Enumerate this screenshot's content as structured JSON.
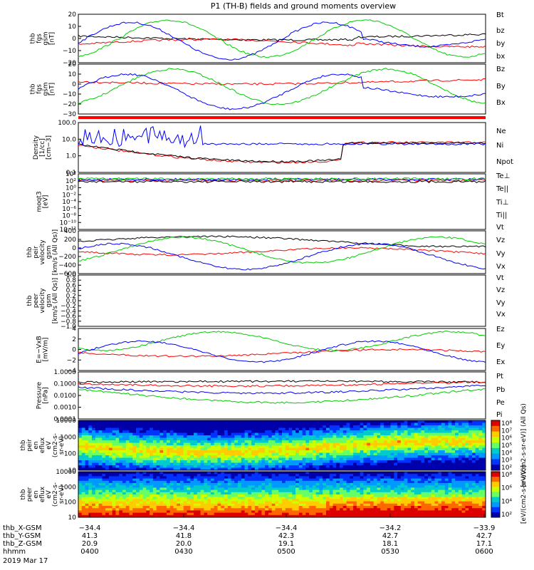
{
  "title": "P1 (TH-B) fields and ground moments overview",
  "chart_data": [
    {
      "panel": "fgs_gsm",
      "type": "line",
      "ylabel": [
        "thb",
        "fgs",
        "gsm",
        "[nT]"
      ],
      "ylim": [
        -20,
        20
      ],
      "yticks": [
        "20",
        "10",
        "0",
        "−10",
        "−20"
      ],
      "series": [
        {
          "name": "Bt",
          "color": "#000000"
        },
        {
          "name": "bz",
          "color": "#ff0000"
        },
        {
          "name": "by",
          "color": "#00cc00"
        },
        {
          "name": "bx",
          "color": "#0000ff"
        }
      ]
    },
    {
      "panel": "fgs_gsm_dsl",
      "type": "line",
      "ylabel": [
        "thb",
        "fgs",
        "gsm",
        "[nT]"
      ],
      "ylim": [
        -35,
        25
      ],
      "yticks": [
        "20",
        "10",
        "0",
        "−10",
        "−20",
        "−30"
      ],
      "series": [
        {
          "name": "Bz",
          "color": "#ff0000"
        },
        {
          "name": "By",
          "color": "#00cc00"
        },
        {
          "name": "Bx",
          "color": "#0000ff"
        }
      ]
    },
    {
      "panel": "density",
      "type": "line",
      "ylabel": [
        "Density",
        "[1/cc]",
        "[cm−3]"
      ],
      "yscale": "log",
      "yticks": [
        "100.0",
        "10.0",
        "1.0",
        "0.1"
      ],
      "series": [
        {
          "name": "Ne",
          "color": "#ff0000"
        },
        {
          "name": "Ni",
          "color": "#000000"
        },
        {
          "name": "Npot",
          "color": "#0000ff"
        }
      ]
    },
    {
      "panel": "temperature",
      "type": "line",
      "ylabel": [
        "moqt3",
        "[eV]"
      ],
      "yscale": "log",
      "yticks": [
        "10⁴",
        "10²",
        "10⁰",
        "10⁻²",
        "10⁻⁴",
        "10⁻⁶",
        "10⁻⁸",
        "10⁻¹⁰",
        "10⁻¹²"
      ],
      "series": [
        {
          "name": "Te⊥",
          "color": "#ff0000"
        },
        {
          "name": "Te||",
          "color": "#000000"
        },
        {
          "name": "Ti⊥",
          "color": "#0000ff"
        },
        {
          "name": "Ti||",
          "color": "#00cc00"
        }
      ]
    },
    {
      "panel": "peir_velocity",
      "type": "line",
      "ylabel": [
        "thb",
        "peir",
        "velocity",
        "gsm",
        "[km/s (All Qs)]"
      ],
      "ylim": [
        -600,
        400
      ],
      "yticks": [
        "400",
        "200",
        "0",
        "−200",
        "−400",
        "−600"
      ],
      "series": [
        {
          "name": "Vt",
          "color": "#000000"
        },
        {
          "name": "Vz",
          "color": "#ff0000"
        },
        {
          "name": "Vy",
          "color": "#00cc00"
        },
        {
          "name": "Vx",
          "color": "#0000ff"
        }
      ]
    },
    {
      "panel": "peer_velocity",
      "type": "line",
      "ylabel": [
        "thb",
        "peer",
        "velocity",
        "gsm",
        "[km/s (All Qs)]"
      ],
      "ylim": [
        -1,
        1
      ],
      "yticks": [
        "1.0",
        "0.8",
        "0.6",
        "0.4",
        "0.2",
        "0.0",
        "−0.2",
        "−0.4",
        "−0.6",
        "−0.8",
        "−1.0"
      ],
      "series": [
        {
          "name": "Vt",
          "color": "#000000"
        },
        {
          "name": "Vz",
          "color": "#ff0000"
        },
        {
          "name": "Vy",
          "color": "#00cc00"
        },
        {
          "name": "Vx",
          "color": "#0000ff"
        }
      ]
    },
    {
      "panel": "efield",
      "type": "line",
      "ylabel": [
        "E=−VxB",
        "[mV/m]"
      ],
      "ylim": [
        -4,
        4
      ],
      "yticks": [
        "4",
        "2",
        "0",
        "−2",
        "−4"
      ],
      "series": [
        {
          "name": "Ez",
          "color": "#ff0000"
        },
        {
          "name": "Ey",
          "color": "#00cc00"
        },
        {
          "name": "Ex",
          "color": "#0000ff"
        }
      ]
    },
    {
      "panel": "pressure",
      "type": "line",
      "ylabel": [
        "Pressure",
        "[nPa]"
      ],
      "yscale": "log",
      "yticks": [
        "1.0000",
        "0.1000",
        "0.0100",
        "0.0010",
        "0.0001"
      ],
      "series": [
        {
          "name": "Pt",
          "color": "#000000"
        },
        {
          "name": "Pb",
          "color": "#ff0000"
        },
        {
          "name": "Pe",
          "color": "#00cc00"
        },
        {
          "name": "Pi",
          "color": "#0000ff"
        }
      ]
    },
    {
      "panel": "peir_spectrogram",
      "type": "heatmap",
      "ylabel": [
        "thb",
        "peir",
        "en",
        "eflux",
        "eV",
        "(cm2-s-",
        "sr-eV)"
      ],
      "yscale": "log",
      "yticks": [
        "10000",
        "1000",
        "100",
        "10"
      ],
      "colorbar_ticks": [
        "10⁸",
        "10⁷",
        "10⁶",
        "10⁵",
        "10⁴",
        "10³",
        "10²"
      ],
      "colorbar_label": "[eV/(cm2-s-sr-eV)] (All Qs)"
    },
    {
      "panel": "peer_spectrogram",
      "type": "heatmap",
      "ylabel": [
        "thb",
        "peer",
        "en",
        "eflux",
        "eV",
        "(cm2-s-",
        "sr-eV)"
      ],
      "yscale": "log",
      "yticks": [
        "10000",
        "1000",
        "100",
        "10"
      ],
      "colorbar_ticks": [
        "10⁸",
        "10⁶",
        "10⁴",
        "10²"
      ],
      "colorbar_label": "[eV/(cm2-s-sr-eV)]"
    }
  ],
  "xaxis": {
    "rows": [
      {
        "label": "thb_X-GSM",
        "values": [
          "−34.4",
          "−34.4",
          "−34.4",
          "−34.2",
          "−33.9"
        ]
      },
      {
        "label": "thb_Y-GSM",
        "values": [
          "41.3",
          "41.8",
          "42.3",
          "42.7",
          "42.7"
        ]
      },
      {
        "label": "thb_Z-GSM",
        "values": [
          "20.9",
          "20.0",
          "19.1",
          "18.1",
          "17.1"
        ]
      },
      {
        "label": "hhmm",
        "values": [
          "0400",
          "0430",
          "0500",
          "0530",
          "0600"
        ]
      }
    ],
    "date": "2019 Mar 17"
  }
}
